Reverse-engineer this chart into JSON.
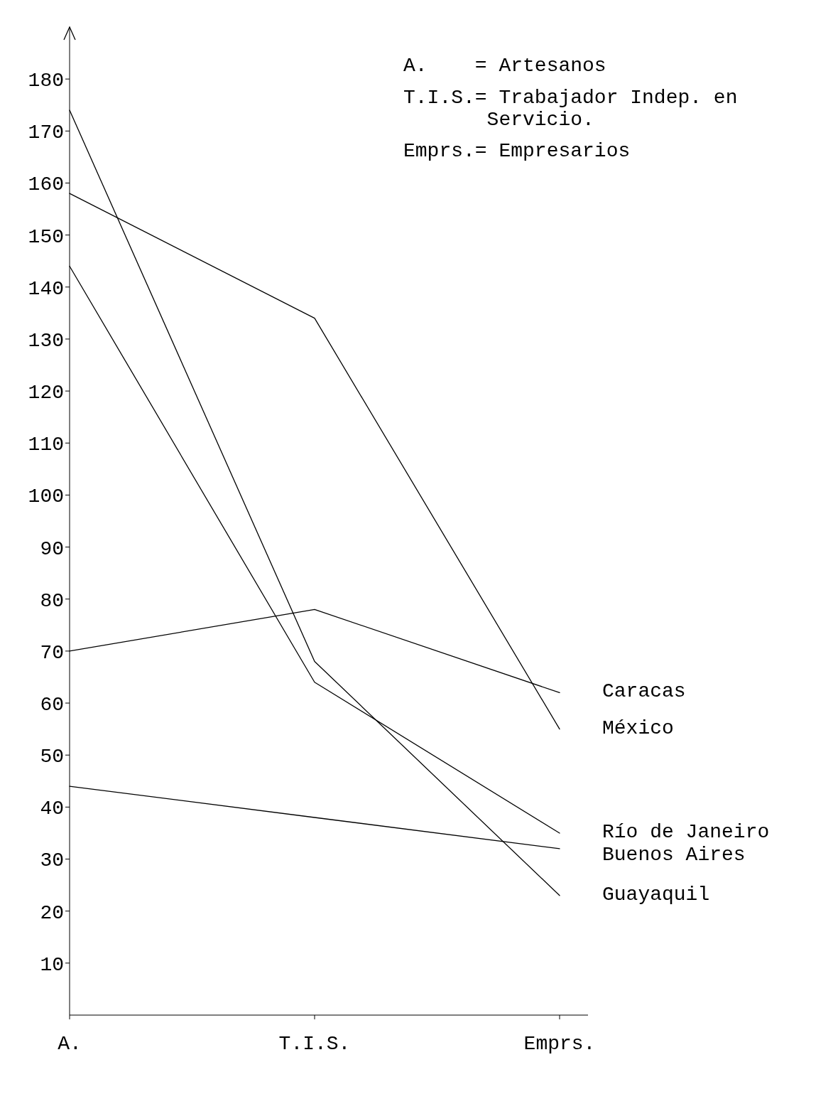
{
  "chart_data": {
    "type": "line",
    "categories": [
      "A.",
      "T.I.S.",
      "Emprs."
    ],
    "series": [
      {
        "name": "Caracas",
        "color": "#000000",
        "values": [
          70,
          78,
          62
        ]
      },
      {
        "name": "México",
        "color": "#000000",
        "values": [
          158,
          134,
          55
        ]
      },
      {
        "name": "Río de Janeiro",
        "color": "#000000",
        "values": [
          144,
          64,
          35
        ]
      },
      {
        "name": "Buenos Aires",
        "color": "#000000",
        "values": [
          44,
          38,
          32
        ]
      },
      {
        "name": "Guayaquil",
        "color": "#000000",
        "values": [
          174,
          68,
          23
        ]
      }
    ],
    "ylim": [
      0,
      190
    ],
    "yticks": [
      10,
      20,
      30,
      40,
      50,
      60,
      70,
      80,
      90,
      100,
      110,
      120,
      130,
      140,
      150,
      160,
      170,
      180
    ],
    "annotations": [
      "A.    = Artesanos",
      "T.I.S.= Trabajador Indep. en Servicio.",
      "Emprs.= Empresarios"
    ]
  }
}
